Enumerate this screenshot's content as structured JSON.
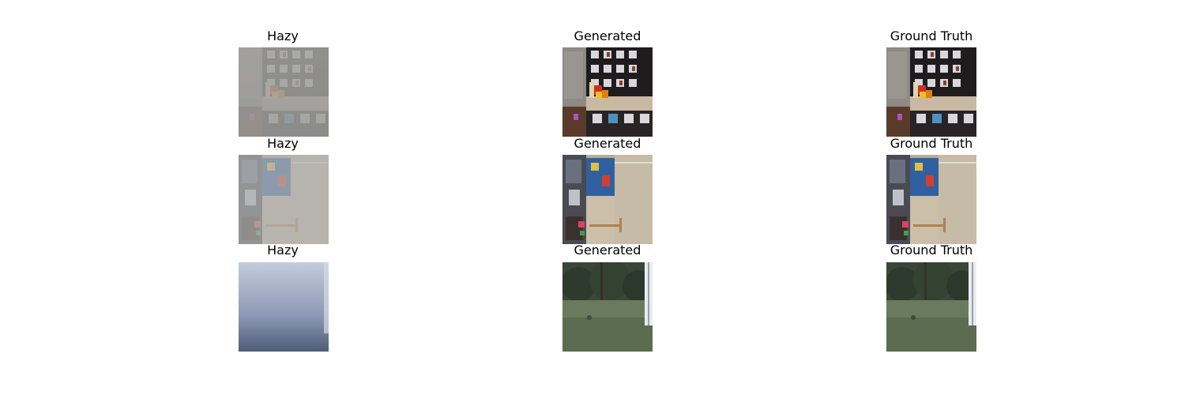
{
  "rows": [
    {
      "panels": [
        {
          "title": "Hazy",
          "image": "hazy-shelf-scene-image"
        },
        {
          "title": "Generated",
          "image": "generated-shelf-scene-image"
        },
        {
          "title": "Ground Truth",
          "image": "ground-truth-shelf-scene-image"
        }
      ]
    },
    {
      "panels": [
        {
          "title": "Hazy",
          "image": "hazy-toy-room-scene-image"
        },
        {
          "title": "Generated",
          "image": "generated-toy-room-scene-image"
        },
        {
          "title": "Ground Truth",
          "image": "ground-truth-toy-room-scene-image"
        }
      ]
    },
    {
      "panels": [
        {
          "title": "Hazy",
          "image": "hazy-garden-scene-image"
        },
        {
          "title": "Generated",
          "image": "generated-garden-scene-image"
        },
        {
          "title": "Ground Truth",
          "image": "ground-truth-garden-scene-image"
        }
      ]
    }
  ]
}
